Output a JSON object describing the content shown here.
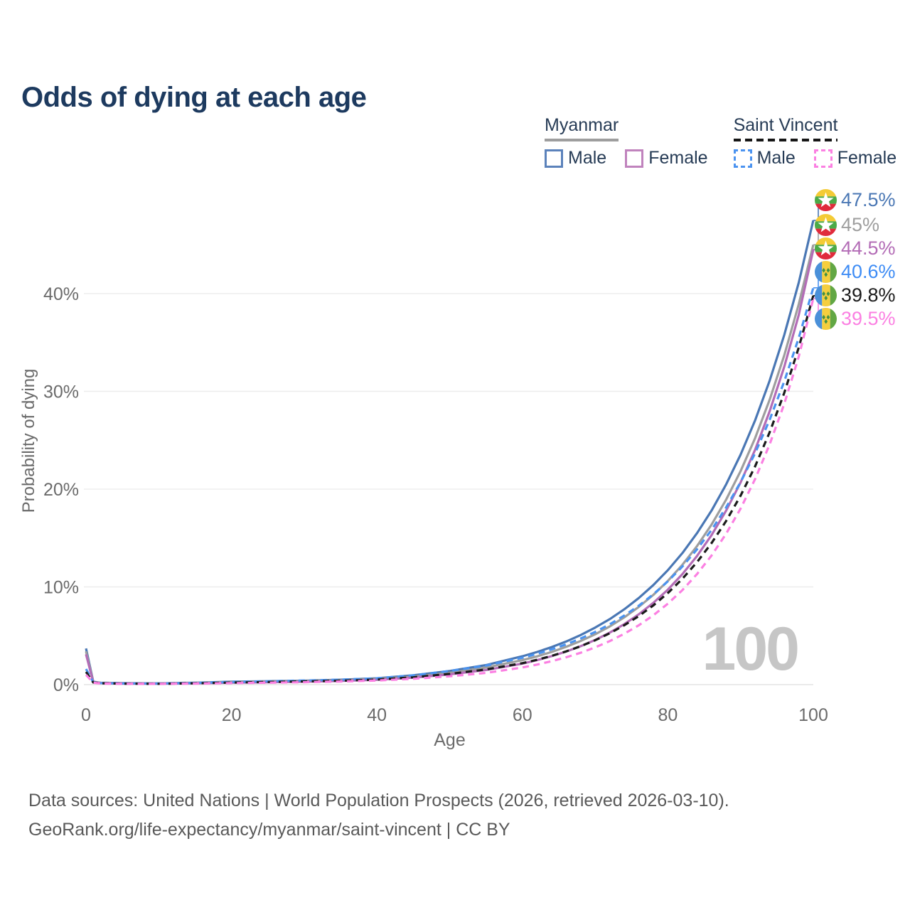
{
  "title": "Odds of dying at each age",
  "legend": {
    "groups": [
      {
        "label": "Myanmar",
        "line_style": "solid",
        "key_color": "#9e9e9e",
        "entries": [
          {
            "label": "Male",
            "color": "#4a77b4"
          },
          {
            "label": "Female",
            "color": "#b36cb6"
          }
        ]
      },
      {
        "label": "Saint Vincent",
        "line_style": "dashed",
        "key_color": "#161616",
        "entries": [
          {
            "label": "Male",
            "color": "#4b93f0"
          },
          {
            "label": "Female",
            "color": "#fb80e2"
          }
        ]
      }
    ]
  },
  "chart_data": {
    "type": "line",
    "title": "Odds of dying at each age",
    "xlabel": "Age",
    "ylabel": "Probability of dying",
    "xlim": [
      0,
      100
    ],
    "ylim_percent": [
      0,
      48
    ],
    "x_ticks": [
      0,
      20,
      40,
      60,
      80,
      100
    ],
    "y_ticks": [
      {
        "value": 0,
        "label": "0%"
      },
      {
        "value": 10,
        "label": "10%"
      },
      {
        "value": 20,
        "label": "20%"
      },
      {
        "value": 30,
        "label": "30%"
      },
      {
        "value": 40,
        "label": "40%"
      }
    ],
    "grid": true,
    "legend_position": "top-right",
    "watermark": "100",
    "ages": [
      0,
      1,
      2,
      5,
      10,
      15,
      20,
      25,
      30,
      35,
      40,
      45,
      50,
      55,
      60,
      62,
      64,
      66,
      68,
      70,
      72,
      74,
      76,
      78,
      80,
      82,
      84,
      86,
      88,
      90,
      92,
      94,
      96,
      98,
      100
    ],
    "series": [
      {
        "name": "Myanmar male",
        "color": "#4a77b4",
        "dash": false,
        "flag": "myanmar",
        "end_label": "47.5%",
        "end_value": 47.5,
        "label_color": "#4a77b4",
        "values_percent": [
          3.7,
          0.3,
          0.2,
          0.15,
          0.13,
          0.2,
          0.3,
          0.35,
          0.4,
          0.5,
          0.65,
          0.95,
          1.4,
          2.0,
          2.9,
          3.34,
          3.83,
          4.41,
          5.07,
          5.83,
          6.7,
          7.7,
          8.86,
          10.18,
          11.71,
          13.46,
          15.48,
          17.8,
          20.46,
          23.53,
          27.05,
          31.1,
          35.76,
          41.12,
          47.5
        ]
      },
      {
        "name": "Myanmar both sexes",
        "color": "#9e9e9e",
        "dash": false,
        "flag": "myanmar",
        "end_label": "45%",
        "end_value": 45.0,
        "label_color": "#9e9e9e",
        "values_percent": [
          3.4,
          0.27,
          0.18,
          0.13,
          0.12,
          0.17,
          0.26,
          0.31,
          0.36,
          0.45,
          0.58,
          0.82,
          1.2,
          1.75,
          2.5,
          2.89,
          3.34,
          3.86,
          4.46,
          5.15,
          5.95,
          6.88,
          7.95,
          9.18,
          10.61,
          12.26,
          14.16,
          16.36,
          18.9,
          21.84,
          25.23,
          29.15,
          33.68,
          38.91,
          45.0
        ]
      },
      {
        "name": "Myanmar female",
        "color": "#b36cb6",
        "dash": false,
        "flag": "myanmar",
        "end_label": "44.5%",
        "end_value": 44.5,
        "label_color": "#b36cb6",
        "values_percent": [
          3.1,
          0.25,
          0.15,
          0.11,
          0.1,
          0.14,
          0.2,
          0.25,
          0.3,
          0.38,
          0.5,
          0.72,
          1.05,
          1.5,
          2.15,
          2.5,
          2.91,
          3.38,
          3.93,
          4.57,
          5.32,
          6.18,
          7.19,
          8.36,
          9.72,
          11.31,
          13.15,
          15.29,
          17.78,
          20.68,
          24.04,
          27.96,
          32.51,
          37.81,
          44.5
        ]
      },
      {
        "name": "Saint Vincent male",
        "color": "#4b93f0",
        "dash": true,
        "flag": "saint-vincent",
        "end_label": "40.6%",
        "end_value": 40.6,
        "label_color": "#3e8cf5",
        "values_percent": [
          1.6,
          0.25,
          0.16,
          0.12,
          0.11,
          0.17,
          0.27,
          0.34,
          0.42,
          0.5,
          0.65,
          0.95,
          1.4,
          1.95,
          2.75,
          3.15,
          3.6,
          4.12,
          4.71,
          5.39,
          6.17,
          7.06,
          8.07,
          9.24,
          10.57,
          12.09,
          13.83,
          15.82,
          18.1,
          20.71,
          23.69,
          27.1,
          31.01,
          35.47,
          40.6
        ]
      },
      {
        "name": "Saint Vincent both sexes",
        "color": "#1b1b1b",
        "dash": true,
        "flag": "saint-vincent",
        "end_label": "39.8%",
        "end_value": 39.8,
        "label_color": "#1b1b1b",
        "values_percent": [
          1.3,
          0.22,
          0.14,
          0.1,
          0.09,
          0.14,
          0.21,
          0.27,
          0.33,
          0.4,
          0.52,
          0.75,
          1.1,
          1.55,
          2.2,
          2.54,
          2.94,
          3.4,
          3.93,
          4.54,
          5.25,
          6.07,
          7.01,
          8.1,
          9.37,
          10.83,
          12.52,
          14.47,
          16.72,
          19.33,
          22.34,
          25.82,
          29.84,
          34.49,
          39.8
        ]
      },
      {
        "name": "Saint Vincent female",
        "color": "#fb80e2",
        "dash": true,
        "flag": "saint-vincent",
        "end_label": "39.5%",
        "end_value": 39.5,
        "label_color": "#fb80e2",
        "values_percent": [
          1.0,
          0.2,
          0.12,
          0.09,
          0.08,
          0.11,
          0.15,
          0.2,
          0.25,
          0.32,
          0.42,
          0.6,
          0.85,
          1.2,
          1.75,
          2.05,
          2.39,
          2.79,
          3.26,
          3.81,
          4.45,
          5.2,
          6.07,
          7.09,
          8.28,
          9.67,
          11.3,
          13.2,
          15.42,
          18.01,
          21.04,
          24.58,
          28.71,
          33.54,
          39.5
        ]
      }
    ]
  },
  "footer": {
    "line1": "Data sources: United Nations | World Population Prospects (2026, retrieved 2026-03-10).",
    "line2": "GeoRank.org/life-expectancy/myanmar/saint-vincent | CC BY"
  },
  "colors": {
    "title": "#1d3a5f",
    "axis_text": "#6b6b6b",
    "gridline": "#ededed",
    "watermark": "#c6c6c6",
    "footer_text": "#595959"
  }
}
